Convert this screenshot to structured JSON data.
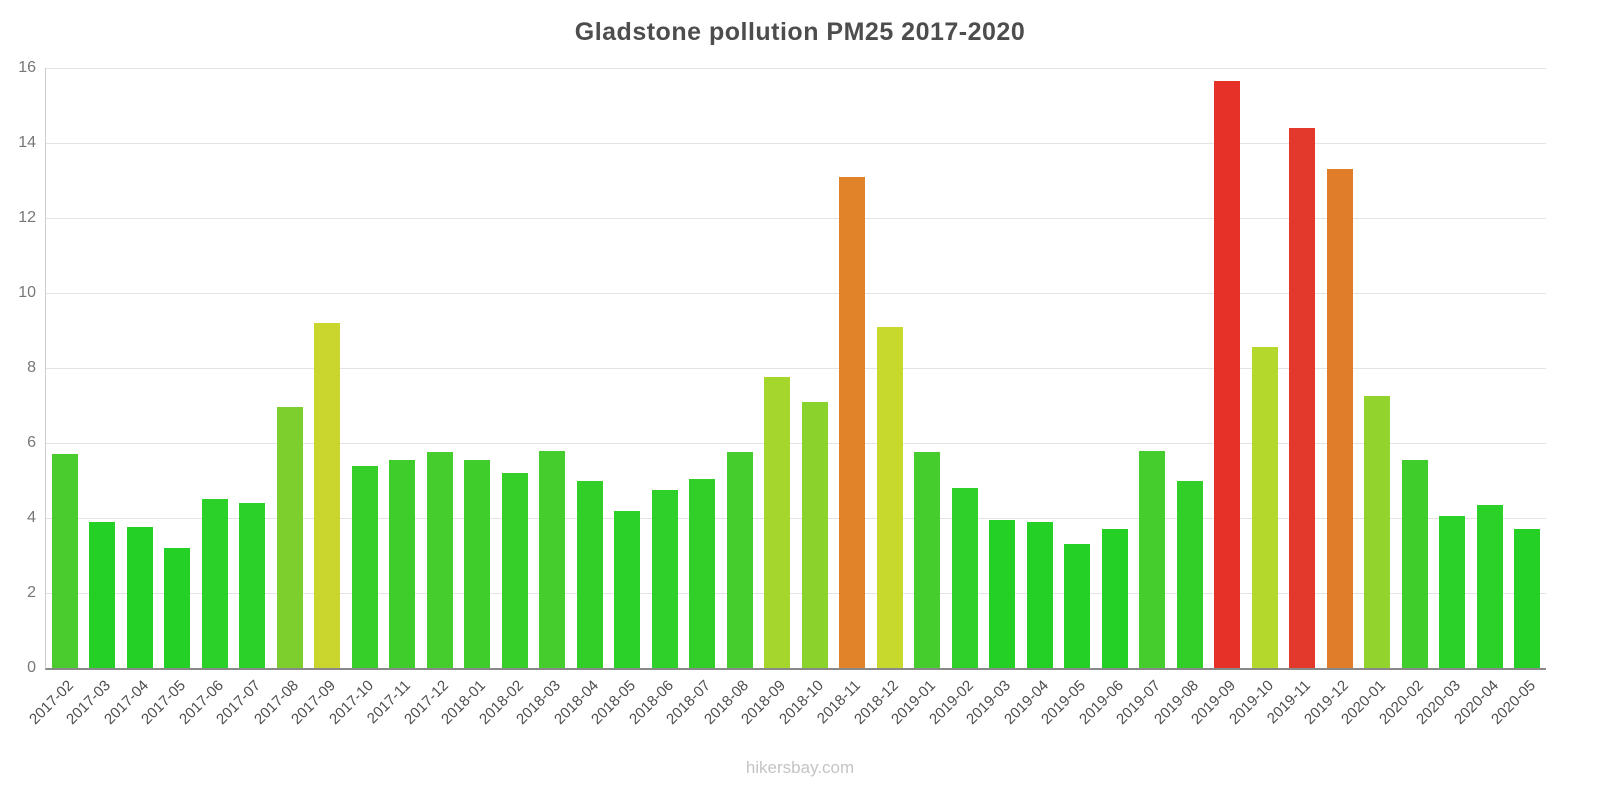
{
  "chart_data": {
    "type": "bar",
    "title": "Gladstone pollution PM25 2017-2020",
    "xlabel": "",
    "ylabel": "",
    "ylim": [
      0,
      16
    ],
    "yticks": [
      0,
      2,
      4,
      6,
      8,
      10,
      12,
      14,
      16
    ],
    "grid": true,
    "legend": null,
    "categories": [
      "2017-02",
      "2017-03",
      "2017-04",
      "2017-05",
      "2017-06",
      "2017-07",
      "2017-08",
      "2017-09",
      "2017-10",
      "2017-11",
      "2017-12",
      "2018-01",
      "2018-02",
      "2018-03",
      "2018-04",
      "2018-05",
      "2018-06",
      "2018-07",
      "2018-08",
      "2018-09",
      "2018-10",
      "2018-11",
      "2018-12",
      "2019-01",
      "2019-02",
      "2019-03",
      "2019-04",
      "2019-05",
      "2019-06",
      "2019-07",
      "2019-08",
      "2019-09",
      "2019-10",
      "2019-11",
      "2019-12",
      "2020-01",
      "2020-02",
      "2020-03",
      "2020-04",
      "2020-05"
    ],
    "values": [
      5.7,
      3.9,
      3.75,
      3.2,
      4.5,
      4.4,
      6.95,
      9.2,
      5.4,
      5.55,
      5.75,
      5.55,
      5.2,
      5.8,
      5.0,
      4.2,
      4.75,
      5.05,
      5.75,
      7.75,
      7.1,
      13.1,
      9.1,
      5.75,
      4.8,
      3.95,
      3.9,
      3.3,
      3.7,
      5.8,
      5.0,
      15.65,
      8.55,
      14.4,
      13.3,
      7.25,
      5.55,
      4.05,
      4.35,
      3.7
    ],
    "colors": [
      "#4acc2e",
      "#25d026",
      "#25d026",
      "#25d026",
      "#2bd028",
      "#2bd028",
      "#7ccf2c",
      "#cad52e",
      "#36cf2a",
      "#3fcd2c",
      "#45cc2d",
      "#3fcd2c",
      "#36cf2a",
      "#45cc2d",
      "#32cf29",
      "#2bd028",
      "#2ed029",
      "#32cf29",
      "#45cc2d",
      "#a5d62c",
      "#8ad22c",
      "#e08329",
      "#c8d92e",
      "#45cc2d",
      "#2ed029",
      "#25d026",
      "#25d026",
      "#25d026",
      "#25d026",
      "#45cc2d",
      "#32cf29",
      "#e53128",
      "#b5d82d",
      "#e2392c",
      "#df7d28",
      "#92d42d",
      "#3fcd2c",
      "#2bd028",
      "#2bd028",
      "#25d026"
    ]
  },
  "footer": {
    "watermark": "hikersbay.com"
  }
}
